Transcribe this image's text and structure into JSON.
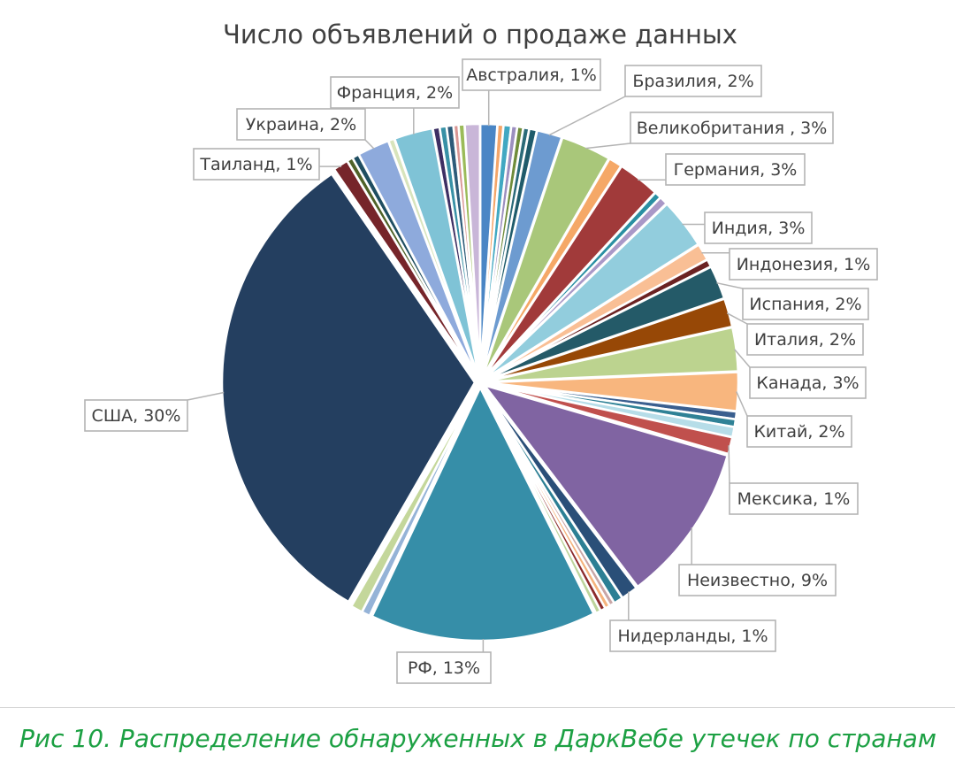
{
  "chart_data": {
    "type": "pie",
    "title": "Число объявлений о продаже данных",
    "caption": "Рис 10. Распределение обнаруженных в ДаркВебе утечек по странам",
    "slices": [
      {
        "label": "Австралия, 1%",
        "value": 1.0,
        "color": "#4a86c5"
      },
      {
        "label": "",
        "value": 0.35,
        "color": "#f3a66a"
      },
      {
        "label": "",
        "value": 0.45,
        "color": "#41a8c2"
      },
      {
        "label": "",
        "value": 0.35,
        "color": "#9c8fbf"
      },
      {
        "label": "",
        "value": 0.35,
        "color": "#6f8c3a"
      },
      {
        "label": "",
        "value": 0.35,
        "color": "#2a6a78"
      },
      {
        "label": "",
        "value": 0.45,
        "color": "#1f5b6b"
      },
      {
        "label": "Бразилия, 2%",
        "value": 1.5,
        "color": "#6d9bd0"
      },
      {
        "label": "Великобритания , 3%",
        "value": 3.0,
        "color": "#a9c77a"
      },
      {
        "label": "",
        "value": 0.8,
        "color": "#f5a867"
      },
      {
        "label": "Германия, 3%",
        "value": 2.5,
        "color": "#a13a3a"
      },
      {
        "label": "",
        "value": 0.4,
        "color": "#2a8fa2"
      },
      {
        "label": "",
        "value": 0.5,
        "color": "#a998c7"
      },
      {
        "label": "Индия, 3%",
        "value": 3.0,
        "color": "#92cddd"
      },
      {
        "label": "Индонезия, 1%",
        "value": 1.0,
        "color": "#f9bf95"
      },
      {
        "label": "",
        "value": 0.45,
        "color": "#6b2222"
      },
      {
        "label": "Испания, 2%",
        "value": 2.0,
        "color": "#245a68"
      },
      {
        "label": "Италия, 2%",
        "value": 1.7,
        "color": "#974806"
      },
      {
        "label": "Канада, 3%",
        "value": 2.6,
        "color": "#bcd38f"
      },
      {
        "label": "Китай, 2%",
        "value": 2.3,
        "color": "#f8b67e"
      },
      {
        "label": "",
        "value": 0.45,
        "color": "#3a5f8f"
      },
      {
        "label": "",
        "value": 0.45,
        "color": "#2f8296"
      },
      {
        "label": "",
        "value": 0.6,
        "color": "#b6dde8"
      },
      {
        "label": "Мексика, 1%",
        "value": 1.0,
        "color": "#c0504d"
      },
      {
        "label": "Неизвестно, 9%",
        "value": 9.5,
        "color": "#8064a2"
      },
      {
        "label": "Нидерланды, 1%",
        "value": 1.0,
        "color": "#2a4f78"
      },
      {
        "label": "",
        "value": 0.55,
        "color": "#2c7f94"
      },
      {
        "label": "",
        "value": 0.3,
        "color": "#c9a6a6"
      },
      {
        "label": "",
        "value": 0.3,
        "color": "#f5b37c"
      },
      {
        "label": "",
        "value": 0.3,
        "color": "#8b2b2b"
      },
      {
        "label": "",
        "value": 0.3,
        "color": "#bcd49b"
      },
      {
        "label": "РФ, 13%",
        "value": 13.5,
        "color": "#368ea8"
      },
      {
        "label": "",
        "value": 0.5,
        "color": "#95b3d7"
      },
      {
        "label": "",
        "value": 0.7,
        "color": "#c4d79b"
      },
      {
        "label": "США, 30%",
        "value": 30.0,
        "color": "#243f60"
      },
      {
        "label": "Таиланд, 1%",
        "value": 0.9,
        "color": "#76252a"
      },
      {
        "label": "",
        "value": 0.35,
        "color": "#4f6228"
      },
      {
        "label": "",
        "value": 0.4,
        "color": "#1f4e61"
      },
      {
        "label": "Украина, 2%",
        "value": 1.9,
        "color": "#8eaadc"
      },
      {
        "label": "",
        "value": 0.35,
        "color": "#d8e4bc"
      },
      {
        "label": "Франция, 2%",
        "value": 2.3,
        "color": "#7fc3d6"
      },
      {
        "label": "",
        "value": 0.4,
        "color": "#3d2f63"
      },
      {
        "label": "",
        "value": 0.4,
        "color": "#3891a6"
      },
      {
        "label": "",
        "value": 0.4,
        "color": "#2d5a78"
      },
      {
        "label": "",
        "value": 0.3,
        "color": "#d99694"
      },
      {
        "label": "",
        "value": 0.35,
        "color": "#9bbb59"
      },
      {
        "label": "",
        "value": 0.9,
        "color": "#c9b6d8"
      }
    ]
  }
}
